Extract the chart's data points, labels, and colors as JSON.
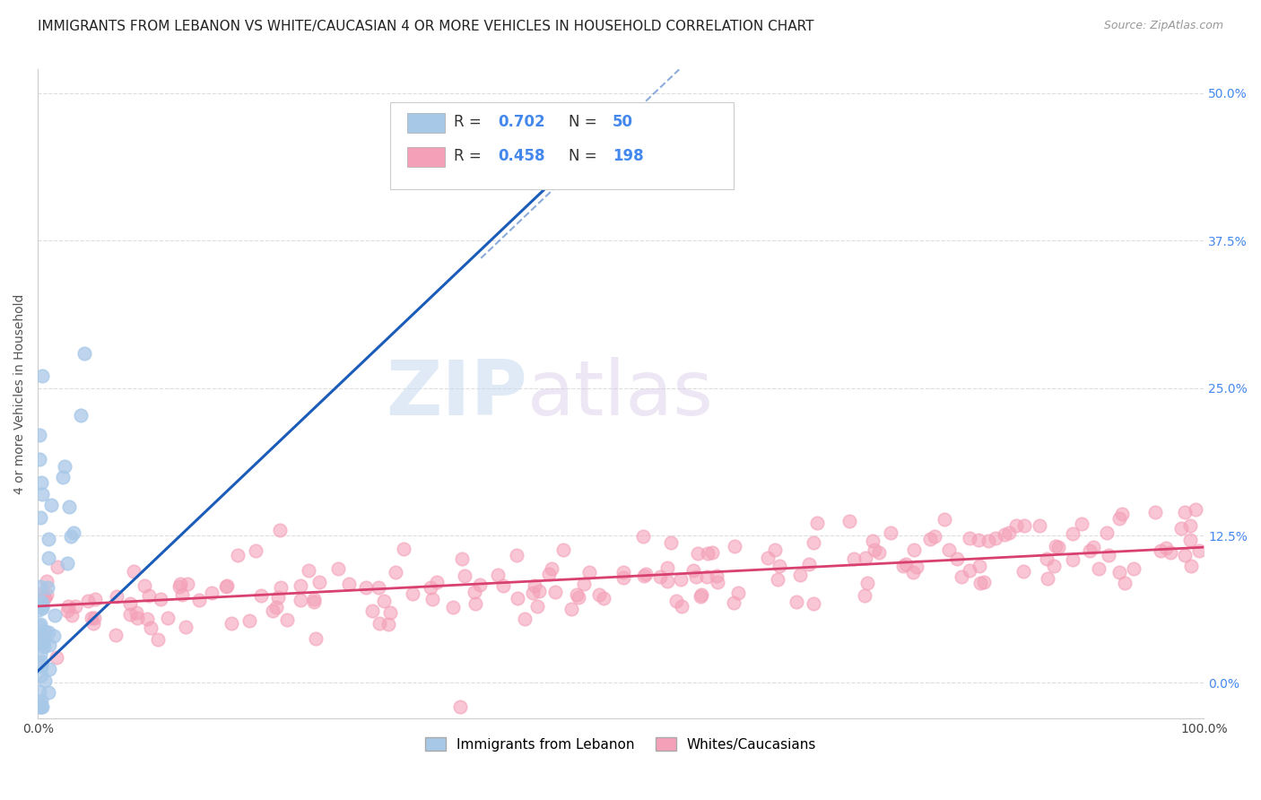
{
  "title": "IMMIGRANTS FROM LEBANON VS WHITE/CAUCASIAN 4 OR MORE VEHICLES IN HOUSEHOLD CORRELATION CHART",
  "source": "Source: ZipAtlas.com",
  "ylabel": "4 or more Vehicles in Household",
  "xlim": [
    0,
    1.0
  ],
  "ylim": [
    -0.03,
    0.52
  ],
  "ytick_positions": [
    0.0,
    0.125,
    0.25,
    0.375,
    0.5
  ],
  "ytick_labels": [
    "0.0%",
    "12.5%",
    "25.0%",
    "37.5%",
    "50.0%"
  ],
  "xtick_positions": [
    0.0,
    0.1,
    0.2,
    0.3,
    0.4,
    0.5,
    0.6,
    0.7,
    0.8,
    0.9,
    1.0
  ],
  "xtick_labels": [
    "0.0%",
    "",
    "",
    "",
    "",
    "",
    "",
    "",
    "",
    "",
    "100.0%"
  ],
  "blue_R": 0.702,
  "blue_N": 50,
  "pink_R": 0.458,
  "pink_N": 198,
  "blue_color": "#a8c8e8",
  "pink_color": "#f4a0b8",
  "blue_line_color": "#1a5cb8",
  "pink_line_color": "#d84070",
  "watermark_zip": "ZIP",
  "watermark_atlas": "atlas",
  "legend_label_blue": "Immigrants from Lebanon",
  "legend_label_pink": "Whites/Caucasians",
  "background_color": "#ffffff",
  "grid_color": "#dddddd",
  "title_fontsize": 11,
  "label_fontsize": 10,
  "tick_fontsize": 10,
  "right_tick_color": "#4488ee",
  "axis_color": "#cccccc"
}
